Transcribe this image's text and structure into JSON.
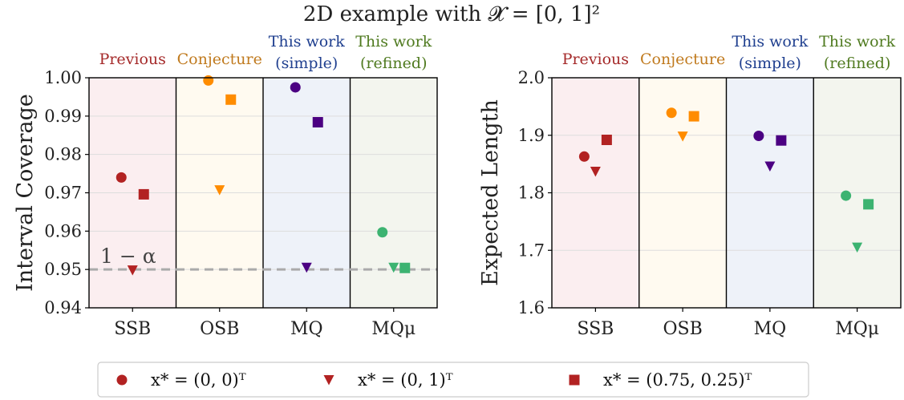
{
  "title": "2D example with 𝓧 = [0, 1]²",
  "method_groups": [
    {
      "lines": [
        "Previous"
      ],
      "color": "#a52a2a"
    },
    {
      "lines": [
        "Conjecture"
      ],
      "color": "#c07a1e"
    },
    {
      "lines": [
        "This work",
        "(simple)"
      ],
      "color": "#1f3f8f"
    },
    {
      "lines": [
        "This work",
        "(refined)"
      ],
      "color": "#4f7a1f"
    }
  ],
  "panel_backgrounds": [
    "#fbeef0",
    "#fffaf0",
    "#eef2f9",
    "#f3f5ee"
  ],
  "legend": [
    {
      "marker": "circle",
      "label": "x* = (0, 0)ᵀ"
    },
    {
      "marker": "triangle-down",
      "label": "x* = (0, 1)ᵀ"
    },
    {
      "marker": "square",
      "label": "x* = (0.75, 0.25)ᵀ"
    }
  ],
  "legend_marker_color": "#b22222",
  "chart_data": [
    {
      "type": "scatter",
      "categories": [
        "SSB",
        "OSB",
        "MQ",
        "MQμ"
      ],
      "ylabel": "Interval Coverage",
      "ylim": [
        0.94,
        1.0
      ],
      "yticks": [
        "0.94",
        "0.95",
        "0.96",
        "0.97",
        "0.98",
        "0.99",
        "1.00"
      ],
      "grid": "horizontal",
      "reference_line": {
        "y": 0.95,
        "label": "1 − α",
        "color": "#aaaaaa"
      },
      "series_colors": [
        "#b22222",
        "#ff8c00",
        "#4b0082",
        "#3cb371"
      ],
      "series": [
        {
          "marker": "circle",
          "values": [
            0.974,
            0.9993,
            0.9975,
            0.9597
          ]
        },
        {
          "marker": "triangle-down",
          "values": [
            0.9498,
            0.9707,
            0.9505,
            0.9505
          ]
        },
        {
          "marker": "square",
          "values": [
            0.9696,
            0.9943,
            0.9884,
            0.9504
          ]
        }
      ]
    },
    {
      "type": "scatter",
      "categories": [
        "SSB",
        "OSB",
        "MQ",
        "MQμ"
      ],
      "ylabel": "Expected Length",
      "ylim": [
        1.6,
        2.0
      ],
      "yticks": [
        "1.6",
        "1.7",
        "1.8",
        "1.9",
        "2.0"
      ],
      "grid": "horizontal",
      "series_colors": [
        "#b22222",
        "#ff8c00",
        "#4b0082",
        "#3cb371"
      ],
      "series": [
        {
          "marker": "circle",
          "values": [
            1.863,
            1.939,
            1.899,
            1.795
          ]
        },
        {
          "marker": "triangle-down",
          "values": [
            1.837,
            1.898,
            1.846,
            1.705
          ]
        },
        {
          "marker": "square",
          "values": [
            1.892,
            1.933,
            1.891,
            1.78
          ]
        }
      ]
    }
  ]
}
